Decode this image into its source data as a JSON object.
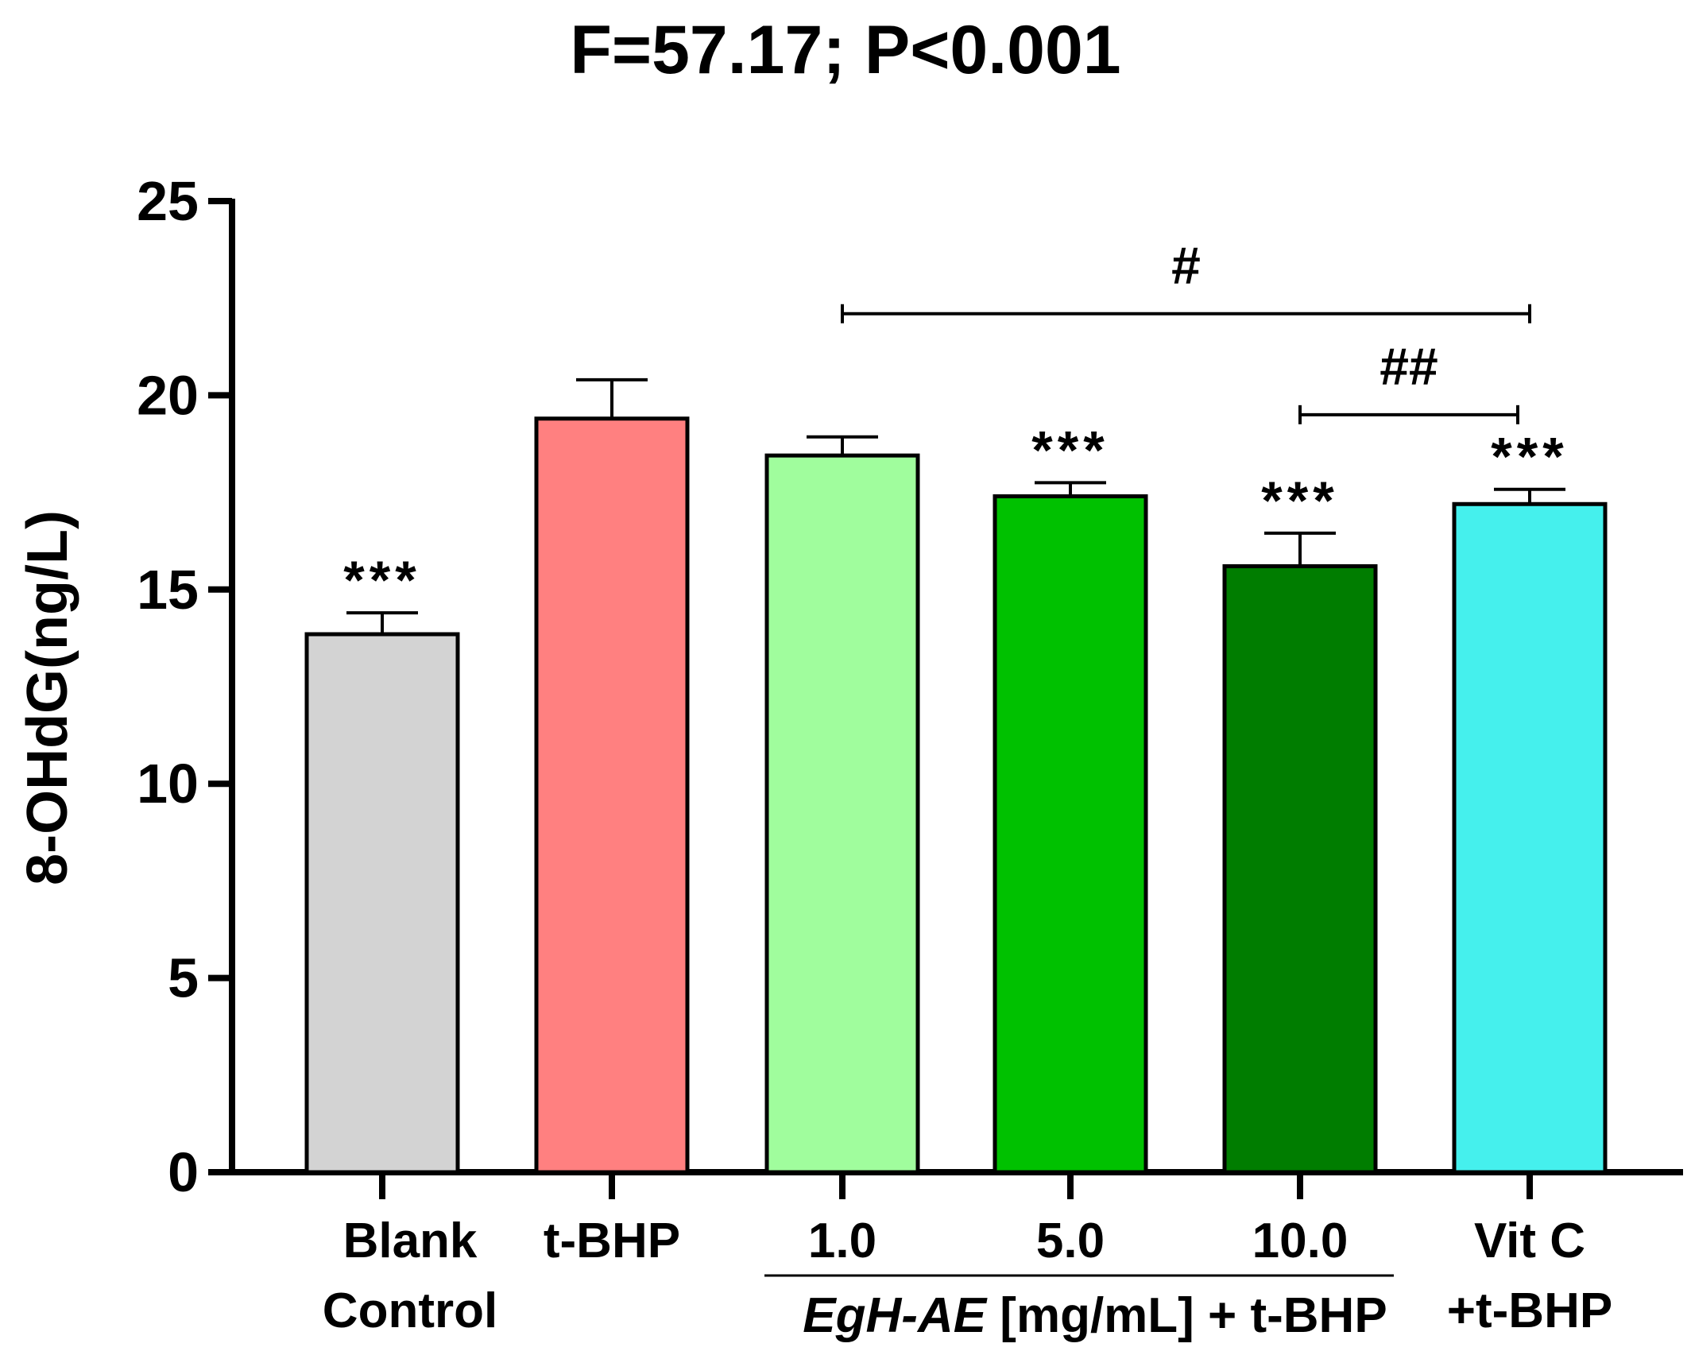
{
  "chart_data": {
    "type": "bar",
    "title": "F=57.17; P<0.001",
    "ylabel": "8-OHdG(ng/L)",
    "ylim": [
      0,
      25
    ],
    "yticks": [
      "0",
      "5",
      "10",
      "15",
      "20",
      "25"
    ],
    "grid": false,
    "legend": "none",
    "categories": [
      {
        "id": "blank-control",
        "lines": [
          "Blank",
          "Control"
        ]
      },
      {
        "id": "t-bhp",
        "lines": [
          "t-BHP"
        ]
      },
      {
        "id": "egh-1",
        "lines": [
          "1.0"
        ]
      },
      {
        "id": "egh-5",
        "lines": [
          "5.0"
        ]
      },
      {
        "id": "egh-10",
        "lines": [
          "10.0"
        ]
      },
      {
        "id": "vitc",
        "lines": [
          "Vit C",
          "+t-BHP"
        ]
      }
    ],
    "values": [
      13.85,
      19.4,
      18.45,
      17.4,
      15.6,
      17.2
    ],
    "errors": [
      0.55,
      1.0,
      0.48,
      0.35,
      0.85,
      0.38
    ],
    "colors": [
      "#d3d3d3",
      "#ff8080",
      "#a0fd9d",
      "#00c100",
      "#007d00",
      "#45f0ed"
    ],
    "significance": [
      "***",
      "",
      "",
      "***",
      "***",
      "***"
    ],
    "group_label": {
      "italic": "EgH-AE",
      "rest": " [mg/mL] + t-BHP",
      "spans": [
        2,
        4
      ]
    },
    "brackets": [
      {
        "label": "#",
        "from": 2,
        "to": 5,
        "y": 22.1
      },
      {
        "label": "##",
        "from": 4,
        "to": 5,
        "y": 19.5
      }
    ]
  }
}
